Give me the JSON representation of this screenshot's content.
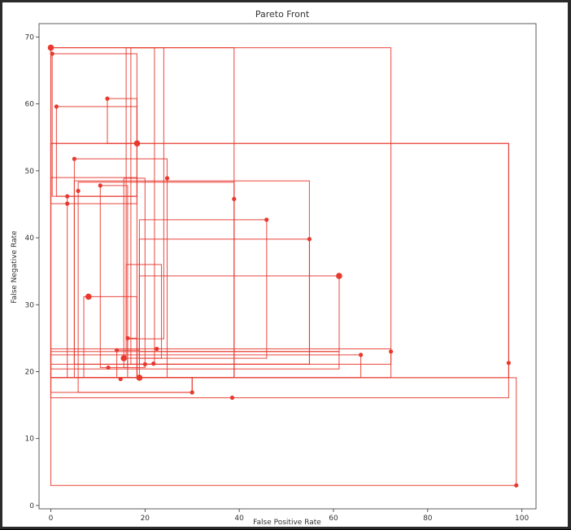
{
  "chart_data": {
    "type": "line",
    "title": "Pareto Front",
    "xlabel": "False Positive Rate",
    "ylabel": "False Negative Rate",
    "xlim": [
      -2.5,
      103
    ],
    "ylim": [
      -0.5,
      72
    ],
    "xticks": [
      0,
      20,
      40,
      60,
      80,
      100
    ],
    "yticks": [
      0,
      10,
      20,
      30,
      40,
      50,
      60,
      70
    ],
    "grid": false,
    "color": "#e8392f",
    "points": [
      {
        "x": 0,
        "y": 68.4,
        "large": true
      },
      {
        "x": 0.3,
        "y": 67.5
      },
      {
        "x": 1.2,
        "y": 59.6
      },
      {
        "x": 12.0,
        "y": 60.8
      },
      {
        "x": 18.3,
        "y": 54.1,
        "large": true
      },
      {
        "x": 5.0,
        "y": 51.8
      },
      {
        "x": 24.7,
        "y": 48.9
      },
      {
        "x": 3.5,
        "y": 46.2
      },
      {
        "x": 5.8,
        "y": 47.0
      },
      {
        "x": 10.5,
        "y": 47.8
      },
      {
        "x": 3.5,
        "y": 45.1
      },
      {
        "x": 38.9,
        "y": 45.8
      },
      {
        "x": 45.8,
        "y": 42.7
      },
      {
        "x": 54.9,
        "y": 39.8
      },
      {
        "x": 61.2,
        "y": 34.3,
        "large": true
      },
      {
        "x": 8.0,
        "y": 31.2,
        "large": true
      },
      {
        "x": 16.3,
        "y": 25.0
      },
      {
        "x": 14.0,
        "y": 23.2
      },
      {
        "x": 22.5,
        "y": 23.4
      },
      {
        "x": 72.2,
        "y": 23.0
      },
      {
        "x": 65.8,
        "y": 22.5
      },
      {
        "x": 15.5,
        "y": 22.0,
        "large": true
      },
      {
        "x": 97.2,
        "y": 21.3
      },
      {
        "x": 20.0,
        "y": 21.1
      },
      {
        "x": 21.8,
        "y": 21.2
      },
      {
        "x": 12.2,
        "y": 20.6
      },
      {
        "x": 18.8,
        "y": 19.1,
        "large": true
      },
      {
        "x": 14.8,
        "y": 18.9
      },
      {
        "x": 30.0,
        "y": 16.9
      },
      {
        "x": 38.5,
        "y": 16.1
      },
      {
        "x": 98.8,
        "y": 3.0
      }
    ],
    "boxes": [
      [
        0,
        19.1,
        72.2,
        68.4
      ],
      [
        0,
        19.1,
        38.9,
        68.4
      ],
      [
        0.3,
        46.2,
        18.3,
        67.5
      ],
      [
        1.2,
        46.2,
        18.3,
        59.6
      ],
      [
        0,
        19.1,
        97.2,
        54.1
      ],
      [
        0,
        16.1,
        97.2,
        54.1
      ],
      [
        5.0,
        19.1,
        24.7,
        51.8
      ],
      [
        5.0,
        21.1,
        54.9,
        48.5
      ],
      [
        5.8,
        19.1,
        38.9,
        48.3
      ],
      [
        0,
        45.1,
        18.3,
        49.0
      ],
      [
        3.5,
        19.1,
        18.3,
        46.2
      ],
      [
        0,
        3.0,
        98.8,
        19.1
      ],
      [
        0,
        19.1,
        65.8,
        22.5
      ],
      [
        0,
        20.4,
        61.2,
        23.0
      ],
      [
        0,
        21.1,
        72.2,
        23.4
      ],
      [
        0,
        19.1,
        30.0,
        16.9
      ],
      [
        5.8,
        16.9,
        30.0,
        19.1
      ],
      [
        7.0,
        19.1,
        18.3,
        31.2
      ],
      [
        18.8,
        23.0,
        61.2,
        34.3
      ],
      [
        18.8,
        22.0,
        45.8,
        42.7
      ],
      [
        18.8,
        21.1,
        54.9,
        39.8
      ],
      [
        16.0,
        22.0,
        23.5,
        36.0
      ],
      [
        16.3,
        19.1,
        18.3,
        25.0
      ],
      [
        12.0,
        54.1,
        18.3,
        60.8
      ],
      [
        16.0,
        24.9,
        24.0,
        68.4
      ],
      [
        17.0,
        21.1,
        22.0,
        68.4
      ],
      [
        15.5,
        20.6,
        20.0,
        48.9
      ],
      [
        14.0,
        19.1,
        18.8,
        23.2
      ],
      [
        10.5,
        20.6,
        16.3,
        47.8
      ]
    ]
  }
}
